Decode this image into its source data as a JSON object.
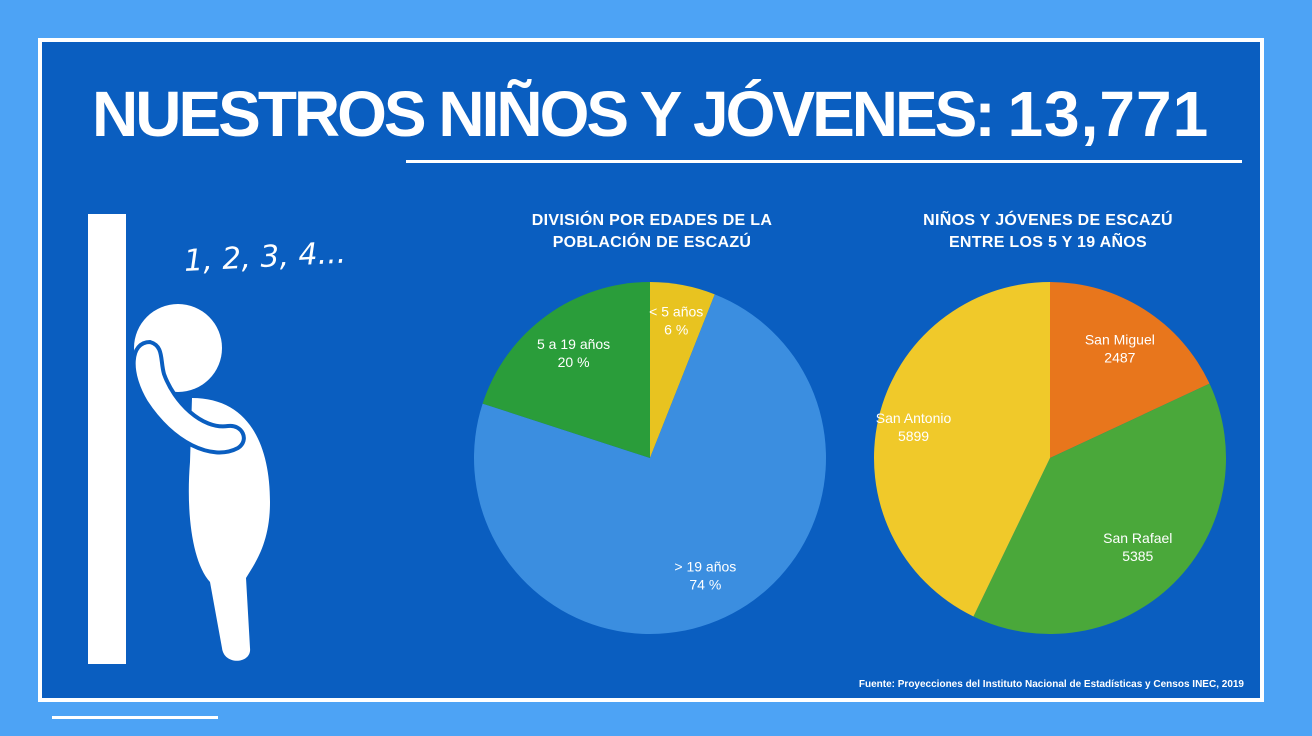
{
  "title": {
    "main": "NUESTROS NIÑOS Y JÓVENES:",
    "number": "13,771"
  },
  "illustration": {
    "counting_text": "1, 2, 3, 4..."
  },
  "source": "Fuente: Proyecciones del Instituto Nacional de Estadísticas y Censos INEC, 2019",
  "chart_data": [
    {
      "type": "pie",
      "title_lines": [
        "DIVISIÓN POR EDADES DE LA",
        "POBLACIÓN DE ESCAZÚ"
      ],
      "slices": [
        {
          "name": "< 5 años",
          "value": 6,
          "label": "6 %",
          "color": "#e8c320"
        },
        {
          "name": "> 19 años",
          "value": 74,
          "label": "74 %",
          "color": "#3b8ee0"
        },
        {
          "name": "5 a 19 años",
          "value": 20,
          "label": "20 %",
          "color": "#2a9d3a"
        }
      ],
      "start": "12-o'clock",
      "direction": "clockwise"
    },
    {
      "type": "pie",
      "title_lines": [
        "NIÑOS Y JÓVENES DE ESCAZÚ",
        "ENTRE LOS 5 Y 19 AÑOS"
      ],
      "slices": [
        {
          "name": "San Miguel",
          "value": 2487,
          "label": "2487",
          "color": "#e8761c"
        },
        {
          "name": "San Rafael",
          "value": 5385,
          "label": "5385",
          "color": "#4aa83a"
        },
        {
          "name": "San Antonio",
          "value": 5899,
          "label": "5899",
          "color": "#f0c92a"
        }
      ],
      "start": "12-o'clock",
      "direction": "clockwise"
    }
  ]
}
